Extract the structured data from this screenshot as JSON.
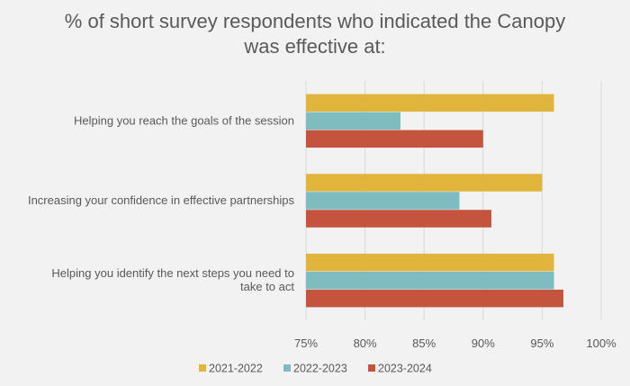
{
  "chart_data": {
    "type": "bar",
    "orientation": "horizontal",
    "title_lines": [
      "% of short survey respondents who indicated the Canopy",
      "was effective at:"
    ],
    "categories": [
      [
        "Helping you reach the goals of the session"
      ],
      [
        "Increasing your confidence in effective partnerships"
      ],
      [
        "Helping you identify the next steps you need to",
        "take to act"
      ]
    ],
    "series": [
      {
        "name": "2021-2022",
        "color": "#e1b43b",
        "values": [
          96,
          95,
          96
        ]
      },
      {
        "name": "2022-2023",
        "color": "#7fbcbf",
        "values": [
          83,
          88,
          96
        ]
      },
      {
        "name": "2023-2024",
        "color": "#c5543f",
        "values": [
          90,
          90.7,
          96.8
        ]
      }
    ],
    "xlim": [
      75,
      100
    ],
    "xticks": [
      75,
      80,
      85,
      90,
      95,
      100
    ],
    "tick_format": "{v}%",
    "grid": true,
    "legend_position": "bottom"
  }
}
